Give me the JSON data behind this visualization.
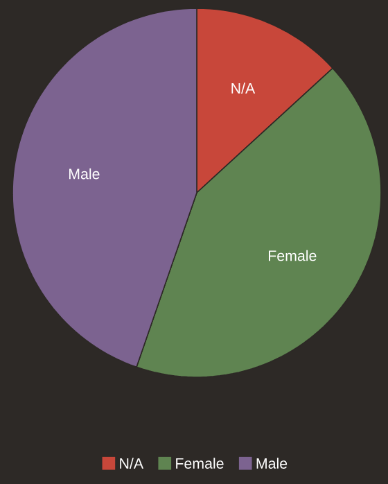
{
  "chart_data": {
    "type": "pie",
    "categories": [
      "N/A",
      "Female",
      "Male"
    ],
    "values": [
      13.2,
      42.1,
      44.7
    ],
    "colors": [
      "#c8473a",
      "#5f8451",
      "#7c6390"
    ],
    "data_labels": false,
    "legend": "bottom"
  }
}
